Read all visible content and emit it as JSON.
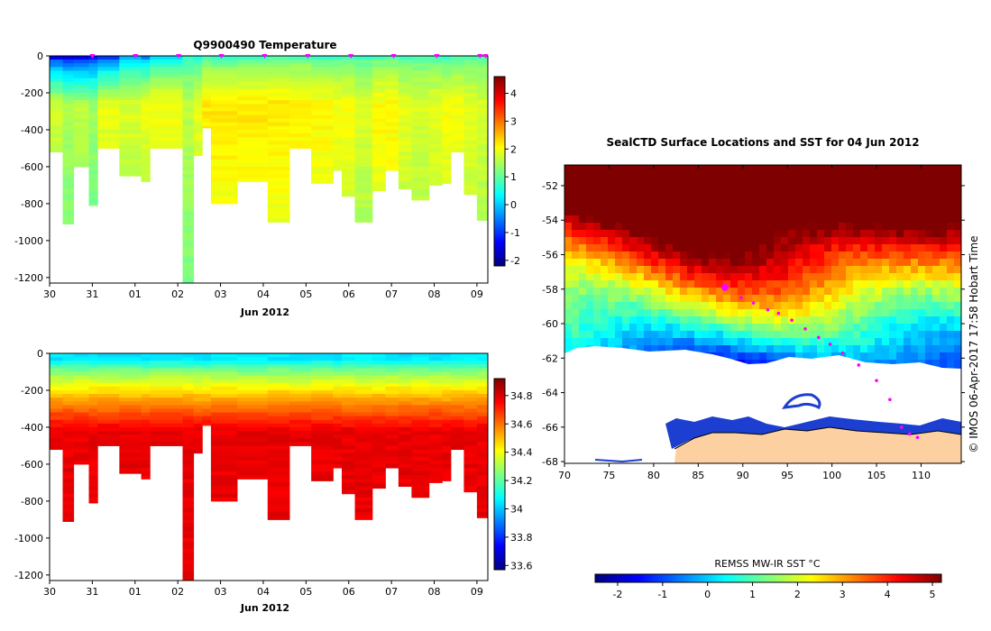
{
  "chart_data": [
    {
      "type": "heatmap",
      "id": "temperature-section",
      "title": "Q9900490  Temperature",
      "xlabel": "Jun 2012",
      "ylabel": "",
      "x_tick_labels": [
        "30",
        "31",
        "01",
        "02",
        "03",
        "04",
        "05",
        "06",
        "07",
        "08",
        "09"
      ],
      "x_range_days": [
        0,
        10.05
      ],
      "ylim": [
        -1230,
        0
      ],
      "y_ticks": [
        0,
        -200,
        -400,
        -600,
        -800,
        -1000,
        -1200
      ],
      "y_tick_labels": [
        "0",
        "-200",
        "-400",
        "-600",
        "-800",
        "-1000",
        "-1200"
      ],
      "profile_markers_day": [
        0.98,
        1.97,
        2.96,
        3.94,
        4.93,
        5.92,
        6.91,
        7.89,
        8.88,
        9.87,
        10.0
      ],
      "colorbar": {
        "min": -2.2,
        "max": 4.6,
        "ticks": [
          4,
          3,
          2,
          1,
          0,
          -1,
          -2
        ],
        "tick_labels": [
          "4",
          "3",
          "2",
          "1",
          "0",
          "-1",
          "-2"
        ]
      },
      "profiles": [
        {
          "t0": 0.0,
          "t1": 0.3,
          "max_depth": 520,
          "surface": -1.3,
          "deep": 1.7
        },
        {
          "t0": 0.3,
          "t1": 0.55,
          "max_depth": 910,
          "surface": -1.4,
          "deep": 1.5
        },
        {
          "t0": 0.55,
          "t1": 0.9,
          "max_depth": 600,
          "surface": -1.5,
          "deep": 1.6
        },
        {
          "t0": 0.9,
          "t1": 1.1,
          "max_depth": 810,
          "surface": -1.3,
          "deep": 1.4
        },
        {
          "t0": 1.1,
          "t1": 1.6,
          "max_depth": 500,
          "surface": -1.0,
          "deep": 1.9
        },
        {
          "t0": 1.6,
          "t1": 2.1,
          "max_depth": 650,
          "surface": -0.2,
          "deep": 1.8
        },
        {
          "t0": 2.1,
          "t1": 2.3,
          "max_depth": 680,
          "surface": -0.4,
          "deep": 1.9
        },
        {
          "t0": 2.3,
          "t1": 3.05,
          "max_depth": 500,
          "surface": 0.2,
          "deep": 2.0
        },
        {
          "t0": 3.05,
          "t1": 3.3,
          "max_depth": 1230,
          "surface": 0.6,
          "deep": 1.6
        },
        {
          "t0": 3.3,
          "t1": 3.5,
          "max_depth": 540,
          "surface": 0.5,
          "deep": 1.9
        },
        {
          "t0": 3.5,
          "t1": 3.7,
          "max_depth": 390,
          "surface": 0.8,
          "deep": 2.2
        },
        {
          "t0": 3.7,
          "t1": 4.3,
          "max_depth": 800,
          "surface": 0.7,
          "deep": 2.2
        },
        {
          "t0": 4.3,
          "t1": 5.0,
          "max_depth": 680,
          "surface": 0.8,
          "deep": 2.2
        },
        {
          "t0": 5.0,
          "t1": 5.5,
          "max_depth": 900,
          "surface": 0.9,
          "deep": 2.2
        },
        {
          "t0": 5.5,
          "t1": 6.0,
          "max_depth": 500,
          "surface": 0.9,
          "deep": 2.1
        },
        {
          "t0": 6.0,
          "t1": 6.5,
          "max_depth": 690,
          "surface": 0.8,
          "deep": 2.1
        },
        {
          "t0": 6.5,
          "t1": 6.7,
          "max_depth": 620,
          "surface": 0.8,
          "deep": 2.0
        },
        {
          "t0": 6.7,
          "t1": 7.0,
          "max_depth": 760,
          "surface": 0.8,
          "deep": 2.0
        },
        {
          "t0": 7.0,
          "t1": 7.4,
          "max_depth": 900,
          "surface": 0.8,
          "deep": 1.8
        },
        {
          "t0": 7.4,
          "t1": 7.7,
          "max_depth": 730,
          "surface": 0.9,
          "deep": 2.1
        },
        {
          "t0": 7.7,
          "t1": 8.0,
          "max_depth": 620,
          "surface": 0.9,
          "deep": 2.1
        },
        {
          "t0": 8.0,
          "t1": 8.3,
          "max_depth": 720,
          "surface": 0.8,
          "deep": 1.9
        },
        {
          "t0": 8.3,
          "t1": 8.7,
          "max_depth": 780,
          "surface": 0.9,
          "deep": 1.8
        },
        {
          "t0": 8.7,
          "t1": 9.0,
          "max_depth": 700,
          "surface": 0.8,
          "deep": 1.9
        },
        {
          "t0": 9.0,
          "t1": 9.2,
          "max_depth": 690,
          "surface": 0.7,
          "deep": 2.0
        },
        {
          "t0": 9.2,
          "t1": 9.5,
          "max_depth": 520,
          "surface": 0.8,
          "deep": 2.0
        },
        {
          "t0": 9.5,
          "t1": 9.8,
          "max_depth": 750,
          "surface": 0.8,
          "deep": 1.9
        },
        {
          "t0": 9.8,
          "t1": 10.05,
          "max_depth": 890,
          "surface": 0.9,
          "deep": 1.8
        }
      ]
    },
    {
      "type": "heatmap",
      "id": "salinity-section",
      "title": "",
      "xlabel": "Jun 2012",
      "x_tick_labels": [
        "30",
        "31",
        "01",
        "02",
        "03",
        "04",
        "05",
        "06",
        "07",
        "08",
        "09"
      ],
      "x_range_days": [
        0,
        10.05
      ],
      "ylim": [
        -1230,
        0
      ],
      "y_ticks": [
        0,
        -200,
        -400,
        -600,
        -800,
        -1000,
        -1200
      ],
      "y_tick_labels": [
        "0",
        "-200",
        "-400",
        "-600",
        "-800",
        "-1000",
        "-1200"
      ],
      "colorbar": {
        "min": 33.57,
        "max": 34.92,
        "ticks": [
          34.8,
          34.6,
          34.4,
          34.2,
          34.0,
          33.8,
          33.6
        ],
        "tick_labels": [
          "34.8",
          "34.6",
          "34.4",
          "34.2",
          "34",
          "33.8",
          "33.6"
        ]
      },
      "surface_salinity": 34.05,
      "deep_salinity": 34.78
    },
    {
      "type": "map",
      "id": "sst-map",
      "title": "SealCTD Surface Locations and SST for 04 Jun 2012",
      "x_ticks": [
        70,
        75,
        80,
        85,
        90,
        95,
        100,
        105,
        110
      ],
      "x_tick_labels": [
        "70",
        "75",
        "80",
        "85",
        "90",
        "95",
        "100",
        "105",
        "110"
      ],
      "xlim": [
        70,
        114.5
      ],
      "y_ticks": [
        -52,
        -54,
        -56,
        -58,
        -60,
        -62,
        -64,
        -66,
        -68
      ],
      "y_tick_labels": [
        "-52",
        "-54",
        "-56",
        "-58",
        "-60",
        "-62",
        "-64",
        "-66",
        "-68"
      ],
      "ylim": [
        -68.1,
        -50.8
      ],
      "track": [
        {
          "lon": 88.0,
          "lat": -57.9,
          "current": true
        },
        {
          "lon": 89.8,
          "lat": -58.5
        },
        {
          "lon": 91.2,
          "lat": -58.8
        },
        {
          "lon": 92.8,
          "lat": -59.2
        },
        {
          "lon": 94.0,
          "lat": -59.4
        },
        {
          "lon": 95.5,
          "lat": -59.8
        },
        {
          "lon": 97.0,
          "lat": -60.3
        },
        {
          "lon": 98.5,
          "lat": -60.8
        },
        {
          "lon": 99.8,
          "lat": -61.2
        },
        {
          "lon": 101.2,
          "lat": -61.7
        },
        {
          "lon": 103.0,
          "lat": -62.4
        },
        {
          "lon": 105.0,
          "lat": -63.3
        },
        {
          "lon": 106.5,
          "lat": -64.4
        },
        {
          "lon": 107.8,
          "lat": -66.0
        },
        {
          "lon": 108.7,
          "lat": -66.4
        },
        {
          "lon": 109.6,
          "lat": -66.6
        }
      ],
      "colorbar_label": "REMSS MW-IR SST °C",
      "colorbar": {
        "min": -2.5,
        "max": 5.2,
        "ticks": [
          -2,
          -1,
          0,
          1,
          2,
          3,
          4,
          5
        ],
        "tick_labels": [
          "-2",
          "-1",
          "0",
          "1",
          "2",
          "3",
          "4",
          "5"
        ]
      },
      "side_label": "© IMOS 06-Apr-2017 17:58 Hobart Time"
    }
  ],
  "colors": {
    "jet": [
      "#00007f",
      "#0000ff",
      "#007fff",
      "#00ffff",
      "#7fff7f",
      "#ffff00",
      "#ff7f00",
      "#ff0000",
      "#7f0000"
    ],
    "marker": "#ff00ff",
    "land": "#fdd0a2",
    "missing": "#ffffff"
  }
}
